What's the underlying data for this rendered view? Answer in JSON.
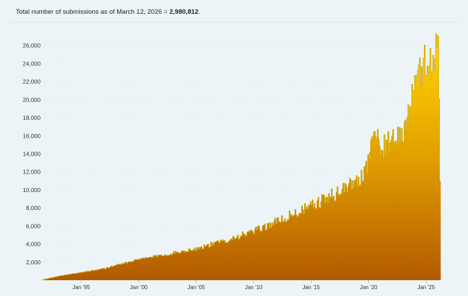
{
  "header": {
    "prefix": "Total number of submissions as of ",
    "date": "March 12, 2026",
    "equals": " = ",
    "total": "2,980,812",
    "suffix": "."
  },
  "colors": {
    "background": "#edf4f7",
    "bar_top": "#ffd000",
    "bar_bottom": "#b25a00",
    "outline": "#caa300"
  },
  "chart_data": {
    "type": "area",
    "title": "",
    "xlabel": "",
    "ylabel": "",
    "granularity": "monthly",
    "x_start": "1991-08",
    "x_end": "2026-03",
    "ylim": [
      0,
      28000
    ],
    "grid": true,
    "y_ticks": [
      2000,
      4000,
      6000,
      8000,
      10000,
      12000,
      14000,
      16000,
      18000,
      20000,
      22000,
      24000,
      26000
    ],
    "y_tick_labels": [
      "2,000",
      "4,000",
      "6,000",
      "8,000",
      "10,000",
      "12,000",
      "14,000",
      "16,000",
      "18,000",
      "20,000",
      "22,000",
      "24,000",
      "26,000"
    ],
    "x_ticks": [
      "1995-01",
      "2000-01",
      "2005-01",
      "2010-01",
      "2015-01",
      "2020-01",
      "2025-01"
    ],
    "x_tick_labels": [
      "Jan '95",
      "Jan '00",
      "Jan '05",
      "Jan '10",
      "Jan '15",
      "Jan '20",
      "Jan '25"
    ],
    "series": [
      {
        "name": "",
        "x": [
          "1991-08",
          "1993-01",
          "1995-01",
          "1997-01",
          "2000-01",
          "2003-01",
          "2005-01",
          "2007-01",
          "2010-01",
          "2012-01",
          "2015-01",
          "2017-01",
          "2018-06",
          "2019-06",
          "2020-01",
          "2020-05",
          "2021-01",
          "2022-01",
          "2023-01",
          "2023-06",
          "2024-01",
          "2024-05",
          "2024-10",
          "2025-01",
          "2025-05",
          "2025-08",
          "2025-11",
          "2026-01",
          "2026-03"
        ],
        "values": [
          30,
          450,
          850,
          1300,
          2300,
          3000,
          3500,
          4200,
          5400,
          6500,
          8200,
          9500,
          10600,
          11600,
          13500,
          16500,
          14800,
          15200,
          16500,
          18500,
          21000,
          22500,
          24200,
          23200,
          24000,
          25000,
          26000,
          27500,
          11000
        ]
      }
    ]
  }
}
